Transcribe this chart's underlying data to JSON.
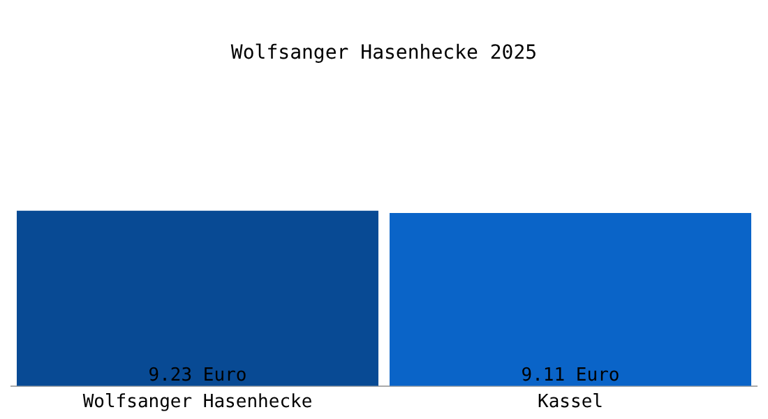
{
  "chart_data": {
    "type": "bar",
    "title": "Wolfsanger Hasenhecke 2025",
    "categories": [
      "Wolfsanger Hasenhecke",
      "Kassel"
    ],
    "values": [
      9.23,
      9.11
    ],
    "colors": [
      "#084a94",
      "#0a64c8"
    ],
    "value_labels": [
      "9.23 Euro",
      "9.11 Euro"
    ],
    "grid": false,
    "legend": false,
    "tick_labels": "x"
  }
}
